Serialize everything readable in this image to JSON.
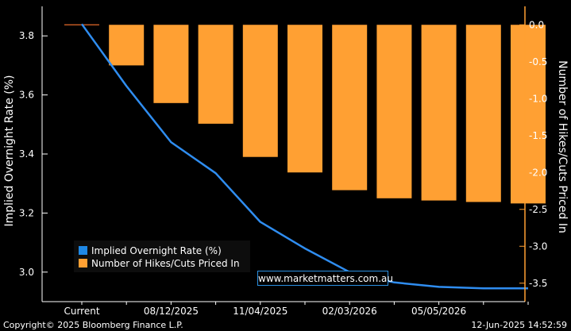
{
  "chart_data": {
    "type": "bar+line",
    "ylabel_left": "Implied Overnight Rate (%)",
    "ylabel_right": "Number of Hikes/Cuts Priced In",
    "x_tick_labels": [
      "Current",
      "08/12/2025",
      "11/04/2025",
      "02/03/2026",
      "05/05/2026"
    ],
    "left_axis": {
      "min": 2.9,
      "max": 3.9,
      "ticks": [
        "3.8",
        "3.6",
        "3.4",
        "3.2",
        "3.0"
      ]
    },
    "right_axis": {
      "min": -3.75,
      "max": 0.25,
      "ticks": [
        "0.0",
        "-0.5",
        "-1.0",
        "-1.5",
        "-2.0",
        "-2.5",
        "-3.0",
        "-3.5"
      ]
    },
    "bars": {
      "name": "Number of Hikes/Cuts Priced In",
      "values": [
        0.0,
        -0.55,
        -1.06,
        -1.34,
        -1.79,
        -2.0,
        -2.24,
        -2.35,
        -2.38,
        -2.4,
        -2.42
      ]
    },
    "line": {
      "name": "Implied Overnight Rate (%)",
      "values": [
        3.84,
        3.63,
        3.44,
        3.335,
        3.17,
        3.08,
        3.0,
        2.965,
        2.95,
        2.945,
        2.945
      ]
    },
    "legend": {
      "position": "bottom-left",
      "entries": [
        {
          "label": "Implied Overnight Rate (%)",
          "color": "#1e88e5"
        },
        {
          "label": "Number of Hikes/Cuts Priced In",
          "color": "#ffa033"
        }
      ]
    },
    "colors": {
      "bar": "#ffa033",
      "line": "#2f8df0",
      "axis_right": "#ffa033",
      "text": "#ffffff"
    }
  },
  "footer": {
    "copyright": "Copyright© 2025 Bloomberg Finance L.P.",
    "timestamp": "12-Jun-2025 14:52:59"
  },
  "watermark": "www.marketmatters.com.au"
}
